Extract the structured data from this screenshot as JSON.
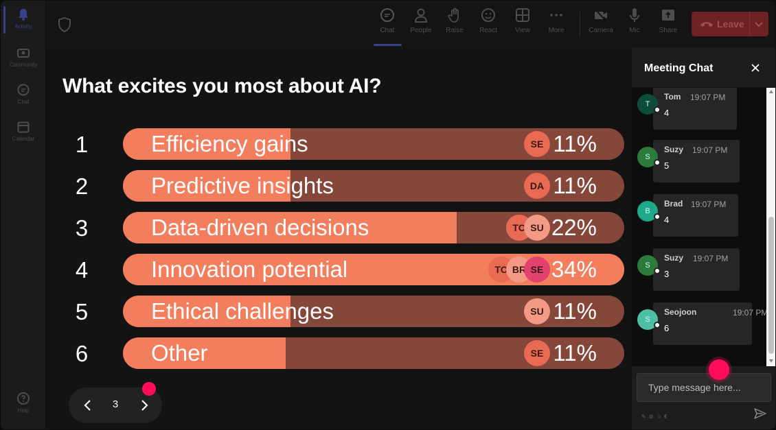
{
  "rail": {
    "items": [
      {
        "label": "Activity",
        "icon": "bell-icon",
        "active": true
      },
      {
        "label": "Community",
        "icon": "community-icon"
      },
      {
        "label": "Chat",
        "icon": "chat-icon"
      },
      {
        "label": "Calendar",
        "icon": "calendar-icon"
      },
      {
        "label": "Help",
        "icon": "help-icon"
      }
    ]
  },
  "toolbar": {
    "buttons": [
      {
        "label": "Chat",
        "icon": "chat-bubble-icon",
        "active": true
      },
      {
        "label": "People",
        "icon": "people-icon"
      },
      {
        "label": "Raise",
        "icon": "raise-hand-icon"
      },
      {
        "label": "React",
        "icon": "react-icon"
      },
      {
        "label": "View",
        "icon": "view-grid-icon"
      },
      {
        "label": "More",
        "icon": "more-icon"
      },
      {
        "label": "Camera",
        "icon": "camera-off-icon"
      },
      {
        "label": "Mic",
        "icon": "mic-icon"
      },
      {
        "label": "Share",
        "icon": "share-icon"
      }
    ],
    "leave_label": "Leave"
  },
  "poll": {
    "question": "What excites you most about AI?",
    "options": [
      {
        "num": "1",
        "label": "Efficiency gains",
        "pct_text": "11%",
        "fraction": 0.334,
        "voters": [
          "SE"
        ]
      },
      {
        "num": "2",
        "label": "Predictive insights",
        "pct_text": "11%",
        "fraction": 0.334,
        "voters": [
          "DA"
        ]
      },
      {
        "num": "3",
        "label": "Data-driven decisions",
        "pct_text": "22%",
        "fraction": 0.666,
        "voters": [
          "TO",
          "SU"
        ]
      },
      {
        "num": "4",
        "label": "Innovation potential",
        "pct_text": "34%",
        "fraction": 1.0,
        "voters": [
          "TO",
          "BR",
          "SE"
        ]
      },
      {
        "num": "5",
        "label": "Ethical challenges",
        "pct_text": "11%",
        "fraction": 0.334,
        "voters": [
          "SU"
        ]
      },
      {
        "num": "6",
        "label": "Other",
        "pct_text": "11%",
        "fraction": 0.324,
        "voters": [
          "SE"
        ]
      }
    ],
    "page": "3"
  },
  "chat": {
    "title": "Meeting Chat",
    "messages": [
      {
        "initial": "T",
        "name": "Tom",
        "time": "19:07 PM",
        "body": "4",
        "color": "#0f4b3a"
      },
      {
        "initial": "S",
        "name": "Suzy",
        "time": "19:07 PM",
        "body": "5",
        "color": "#2c7a3c"
      },
      {
        "initial": "B",
        "name": "Brad",
        "time": "19:07 PM",
        "body": "4",
        "color": "#1fa98a"
      },
      {
        "initial": "S",
        "name": "Suzy",
        "time": "19:07 PM",
        "body": "3",
        "color": "#2c7a3c"
      },
      {
        "initial": "S",
        "name": "Seojoon",
        "time": "19:07 PM",
        "body": "6",
        "color": "#4fbfa3"
      }
    ],
    "input_placeholder": "Type message here..."
  },
  "colors": {
    "accent_pink": "#ff0d5a",
    "bar_fill": "#f37e5e",
    "bar_track": "#84473a",
    "leave": "#6e2023"
  }
}
